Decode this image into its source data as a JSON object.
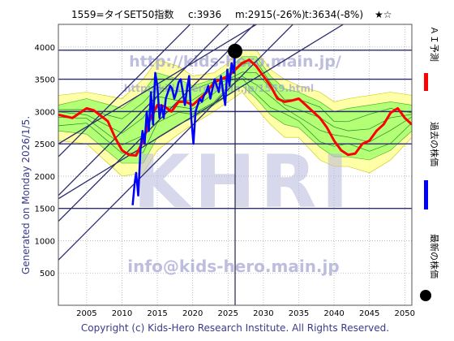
{
  "header": {
    "code_name": "1559=タイSET50指数",
    "current": "c:3936",
    "min_info": "m:2915(-26%)",
    "target_info": "t:3634(-8%)",
    "stars": "★☆"
  },
  "side_label": "Generated on Monday 2026/1/5.",
  "footer": "Copyright (c) Kids-Hero Research Institute. All Rights Reserved.",
  "watermarks": {
    "url_large": "http://kids-hero.main.jp/",
    "url_small": "http://kids-hero.main.jp/1559.html",
    "brand": "KHRI",
    "email": "info@kids-hero.main.jp"
  },
  "legend": {
    "forecast": "ＡＩ予測",
    "past": "過去の株価",
    "latest": "最新の株価"
  },
  "colors": {
    "forecast": "#ff0000",
    "past": "#0000ff",
    "latest": "#000000",
    "band_yellow": "#ffff99",
    "band_green": "#99ff66",
    "trend_lines": "#2d2d6e",
    "watermark": "#9999cc"
  },
  "chart_data": {
    "type": "line",
    "xlim": [
      2001,
      2051
    ],
    "ylim": [
      0,
      4350
    ],
    "x_ticks": [
      2005,
      2010,
      2015,
      2020,
      2025,
      2030,
      2035,
      2040,
      2045,
      2050
    ],
    "y_ticks": [
      500,
      1000,
      1500,
      2000,
      2500,
      3000,
      3500,
      4000
    ],
    "horizontal_lines": [
      1500,
      2500,
      3000,
      3500,
      3950
    ],
    "latest_point": {
      "x": 2026.0,
      "y": 3936
    },
    "past_series": {
      "name": "過去の株価",
      "x": [
        2011.5,
        2011.8,
        2012.0,
        2012.3,
        2012.6,
        2012.9,
        2013.2,
        2013.5,
        2013.8,
        2014.1,
        2014.4,
        2014.7,
        2015.0,
        2015.3,
        2015.6,
        2015.9,
        2016.2,
        2016.5,
        2016.8,
        2017.1,
        2017.4,
        2017.7,
        2018.0,
        2018.3,
        2018.6,
        2018.9,
        2019.2,
        2019.5,
        2019.8,
        2020.1,
        2020.4,
        2020.7,
        2021.0,
        2021.3,
        2021.6,
        2021.9,
        2022.2,
        2022.5,
        2022.8,
        2023.1,
        2023.4,
        2023.7,
        2024.0,
        2024.3,
        2024.6,
        2024.9,
        2025.2,
        2025.5,
        2025.8,
        2026.0
      ],
      "y": [
        1550,
        1900,
        2050,
        1700,
        2400,
        2700,
        2500,
        3000,
        2700,
        3300,
        2800,
        3600,
        3400,
        2900,
        3100,
        2900,
        3200,
        3300,
        3400,
        3350,
        3200,
        3300,
        3450,
        3500,
        3300,
        3100,
        3350,
        3550,
        2900,
        2500,
        3000,
        3100,
        3200,
        3150,
        3250,
        3300,
        3400,
        3200,
        3350,
        3500,
        3400,
        3300,
        3550,
        3300,
        3100,
        3650,
        3400,
        3750,
        3600,
        3936
      ]
    },
    "forecast_series": {
      "name": "ＡＩ予測",
      "x": [
        2001,
        2003,
        2005,
        2006,
        2008,
        2009,
        2010,
        2011,
        2012,
        2013,
        2014,
        2015,
        2016,
        2017,
        2018,
        2019,
        2020,
        2021,
        2022,
        2023,
        2024,
        2025,
        2026,
        2027,
        2028,
        2029,
        2030,
        2031,
        2032,
        2033,
        2034,
        2035,
        2036,
        2037,
        2038,
        2039,
        2040,
        2041,
        2042,
        2043,
        2044,
        2045,
        2046,
        2047,
        2048,
        2049,
        2050,
        2051
      ],
      "y": [
        2950,
        2900,
        3050,
        3020,
        2850,
        2600,
        2400,
        2330,
        2320,
        2550,
        2900,
        3100,
        3080,
        3000,
        3150,
        3150,
        3100,
        3200,
        3300,
        3450,
        3500,
        3550,
        3650,
        3750,
        3800,
        3700,
        3550,
        3400,
        3200,
        3150,
        3170,
        3200,
        3100,
        3000,
        2900,
        2750,
        2550,
        2400,
        2330,
        2350,
        2500,
        2550,
        2700,
        2800,
        2980,
        3050,
        2900,
        2800
      ]
    },
    "band_outer": {
      "x": [
        2001,
        2005,
        2010,
        2013,
        2015,
        2018,
        2020,
        2023,
        2025,
        2027,
        2029,
        2031,
        2033,
        2035,
        2038,
        2040,
        2042,
        2045,
        2048,
        2051
      ],
      "upper": [
        3250,
        3300,
        3200,
        3500,
        3800,
        3700,
        3550,
        3600,
        3750,
        3950,
        3950,
        3650,
        3500,
        3400,
        3300,
        3150,
        3200,
        3250,
        3300,
        3250
      ],
      "lower": [
        2550,
        2500,
        2000,
        2050,
        2400,
        2650,
        2800,
        3000,
        3150,
        3300,
        3050,
        2800,
        2600,
        2600,
        2250,
        2150,
        2150,
        2050,
        2250,
        2600
      ]
    },
    "band_inner": {
      "x": [
        2001,
        2005,
        2010,
        2013,
        2015,
        2018,
        2020,
        2023,
        2025,
        2027,
        2029,
        2031,
        2033,
        2035,
        2038,
        2040,
        2042,
        2045,
        2048,
        2051
      ],
      "upper": [
        3100,
        3200,
        3050,
        3300,
        3600,
        3500,
        3400,
        3500,
        3650,
        3850,
        3850,
        3550,
        3350,
        3300,
        3150,
        3000,
        3050,
        3100,
        3150,
        3100
      ],
      "lower": [
        2700,
        2650,
        2200,
        2200,
        2600,
        2800,
        2900,
        3100,
        3250,
        3400,
        3200,
        2950,
        2800,
        2750,
        2450,
        2300,
        2300,
        2250,
        2400,
        2700
      ]
    },
    "trend_lines": [
      {
        "x1": 2001,
        "y1": 700,
        "x2": 2051,
        "y2": 6200
      },
      {
        "x1": 2001,
        "y1": 1300,
        "x2": 2051,
        "y2": 6800
      },
      {
        "x1": 2001,
        "y1": 1700,
        "x2": 2051,
        "y2": 7200
      },
      {
        "x1": 2001,
        "y1": 2300,
        "x2": 2051,
        "y2": 7800
      },
      {
        "x1": 2001,
        "y1": 1650,
        "x2": 2051,
        "y2": 5000
      },
      {
        "x1": 2001,
        "y1": 2500,
        "x2": 2051,
        "y2": 5800
      }
    ]
  }
}
